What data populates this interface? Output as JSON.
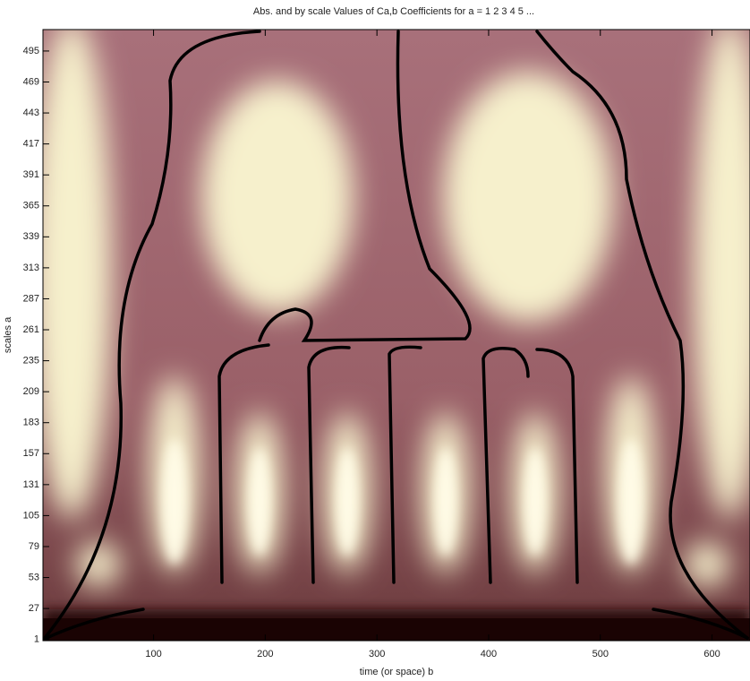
{
  "chart_data": {
    "type": "heatmap",
    "title": "Abs. and by scale Values of Ca,b Coefficients for a =  1 2 3 4 5 ...",
    "xlabel": "time (or space) b",
    "ylabel": "scales a",
    "xlim": [
      1,
      634
    ],
    "ylim": [
      0,
      513
    ],
    "xticks": [
      100,
      200,
      300,
      400,
      500,
      600
    ],
    "yticks": [
      1,
      27,
      53,
      79,
      105,
      131,
      157,
      183,
      209,
      235,
      261,
      287,
      313,
      339,
      365,
      391,
      417,
      443,
      469,
      495
    ]
  }
}
